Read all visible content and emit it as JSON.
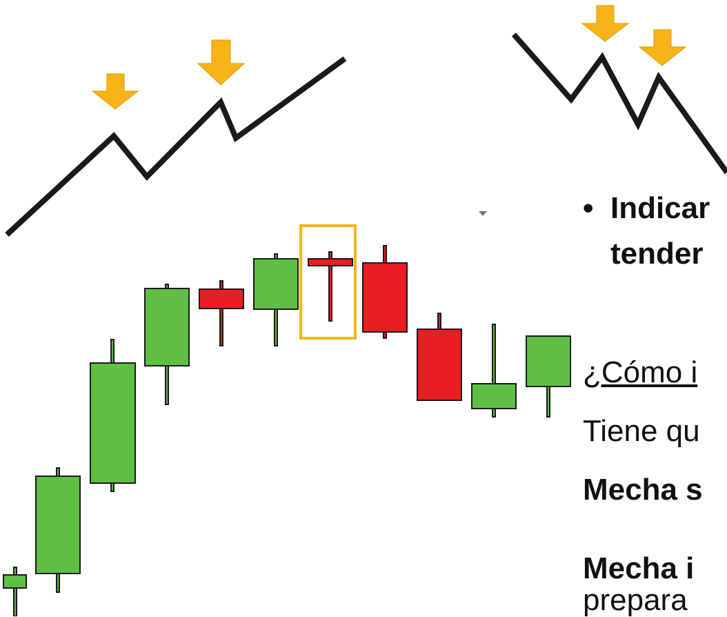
{
  "bullet": {
    "line1": "Indicar",
    "line2": "tender"
  },
  "paragraphs": [
    "¿Cómo i",
    "Tiene qu",
    "Mecha s",
    "Mecha i",
    "prepara"
  ]
}
